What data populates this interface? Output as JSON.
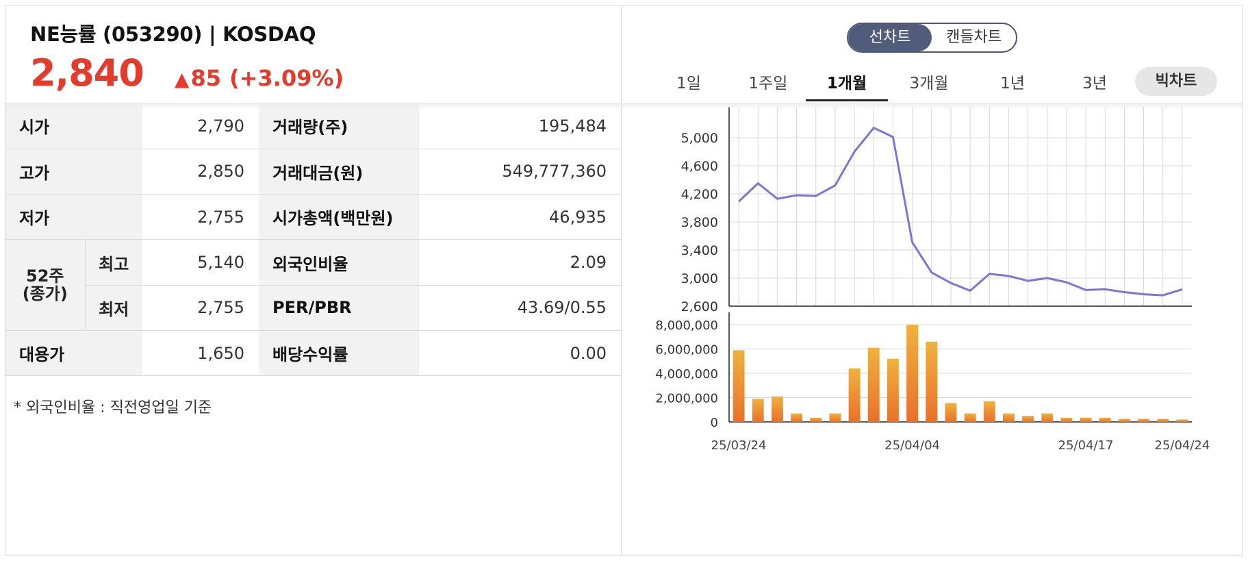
{
  "header": {
    "stock_name": "NE능률 (053290) | KOSDAQ",
    "price": "2,840",
    "change_arrow": "▲",
    "change_value": "85",
    "change_pct": "(+3.09%)",
    "up_color": "#e33b2c"
  },
  "info": {
    "open_label": "시가",
    "open_value": "2,790",
    "high_label": "고가",
    "high_value": "2,850",
    "low_label": "저가",
    "low_value": "2,755",
    "w52_label_1": "52주",
    "w52_label_2": "(종가)",
    "w52_high_label": "최고",
    "w52_high_value": "5,140",
    "w52_low_label": "최저",
    "w52_low_value": "2,755",
    "sub_label": "대용가",
    "sub_value": "1,650",
    "volume_label": "거래량(주)",
    "volume_value": "195,484",
    "amount_label": "거래대금(원)",
    "amount_value": "549,777,360",
    "mcap_label": "시가총액(백만원)",
    "mcap_value": "46,935",
    "foreign_label": "외국인비율",
    "foreign_value": "2.09",
    "perpbr_label": "PER/PBR",
    "perpbr_value": "43.69/0.55",
    "dividend_label": "배당수익률",
    "dividend_value": "0.00"
  },
  "footnote": "* 외국인비율 : 직전영업일 기준",
  "chart_controls": {
    "line_chart": "선차트",
    "candle_chart": "캔들차트",
    "periods": [
      "1일",
      "1주일",
      "1개월",
      "3개월",
      "1년",
      "3년"
    ],
    "active_period": "1개월",
    "big_chart": "빅차트"
  },
  "chart_data": [
    {
      "type": "line",
      "color": "#7b75d6",
      "x": [
        "25/03/24",
        "25/03/25",
        "25/03/26",
        "25/03/27",
        "25/03/28",
        "25/03/31",
        "25/04/01",
        "25/04/02",
        "25/04/03",
        "25/04/04",
        "25/04/07",
        "25/04/08",
        "25/04/09",
        "25/04/10",
        "25/04/11",
        "25/04/14",
        "25/04/15",
        "25/04/16",
        "25/04/17",
        "25/04/18",
        "25/04/21",
        "25/04/22",
        "25/04/23",
        "25/04/24"
      ],
      "values": [
        4090,
        4350,
        4130,
        4180,
        4170,
        4320,
        4800,
        5140,
        5010,
        3510,
        3080,
        2930,
        2820,
        3060,
        3030,
        2960,
        3000,
        2940,
        2830,
        2840,
        2800,
        2770,
        2755,
        2840
      ],
      "ylim": [
        2600,
        5000
      ],
      "yticks": [
        "5,000",
        "4,600",
        "4,200",
        "3,800",
        "3,400",
        "3,000",
        "2,600"
      ],
      "ytick_values": [
        5000,
        4600,
        4200,
        3800,
        3400,
        3000,
        2600
      ],
      "grid": true
    },
    {
      "type": "bar",
      "color_top": "#f0b23e",
      "color_bottom": "#e8702a",
      "x": [
        "25/03/24",
        "25/03/25",
        "25/03/26",
        "25/03/27",
        "25/03/28",
        "25/03/31",
        "25/04/01",
        "25/04/02",
        "25/04/03",
        "25/04/04",
        "25/04/07",
        "25/04/08",
        "25/04/09",
        "25/04/10",
        "25/04/11",
        "25/04/14",
        "25/04/15",
        "25/04/16",
        "25/04/17",
        "25/04/18",
        "25/04/21",
        "25/04/22",
        "25/04/23",
        "25/04/24"
      ],
      "values": [
        5900000,
        1900000,
        2100000,
        700000,
        350000,
        700000,
        4400000,
        6100000,
        5200000,
        8000000,
        6600000,
        1550000,
        700000,
        1700000,
        700000,
        500000,
        700000,
        350000,
        350000,
        350000,
        250000,
        250000,
        250000,
        200000
      ],
      "ylim": [
        0,
        8000000
      ],
      "yticks": [
        "8,000,000",
        "6,000,000",
        "4,000,000",
        "2,000,000",
        "0"
      ],
      "ytick_values": [
        8000000,
        6000000,
        4000000,
        2000000,
        0
      ],
      "xtick_labels": [
        "25/03/24",
        "25/04/04",
        "25/04/17",
        "25/04/24"
      ],
      "grid": true
    }
  ]
}
